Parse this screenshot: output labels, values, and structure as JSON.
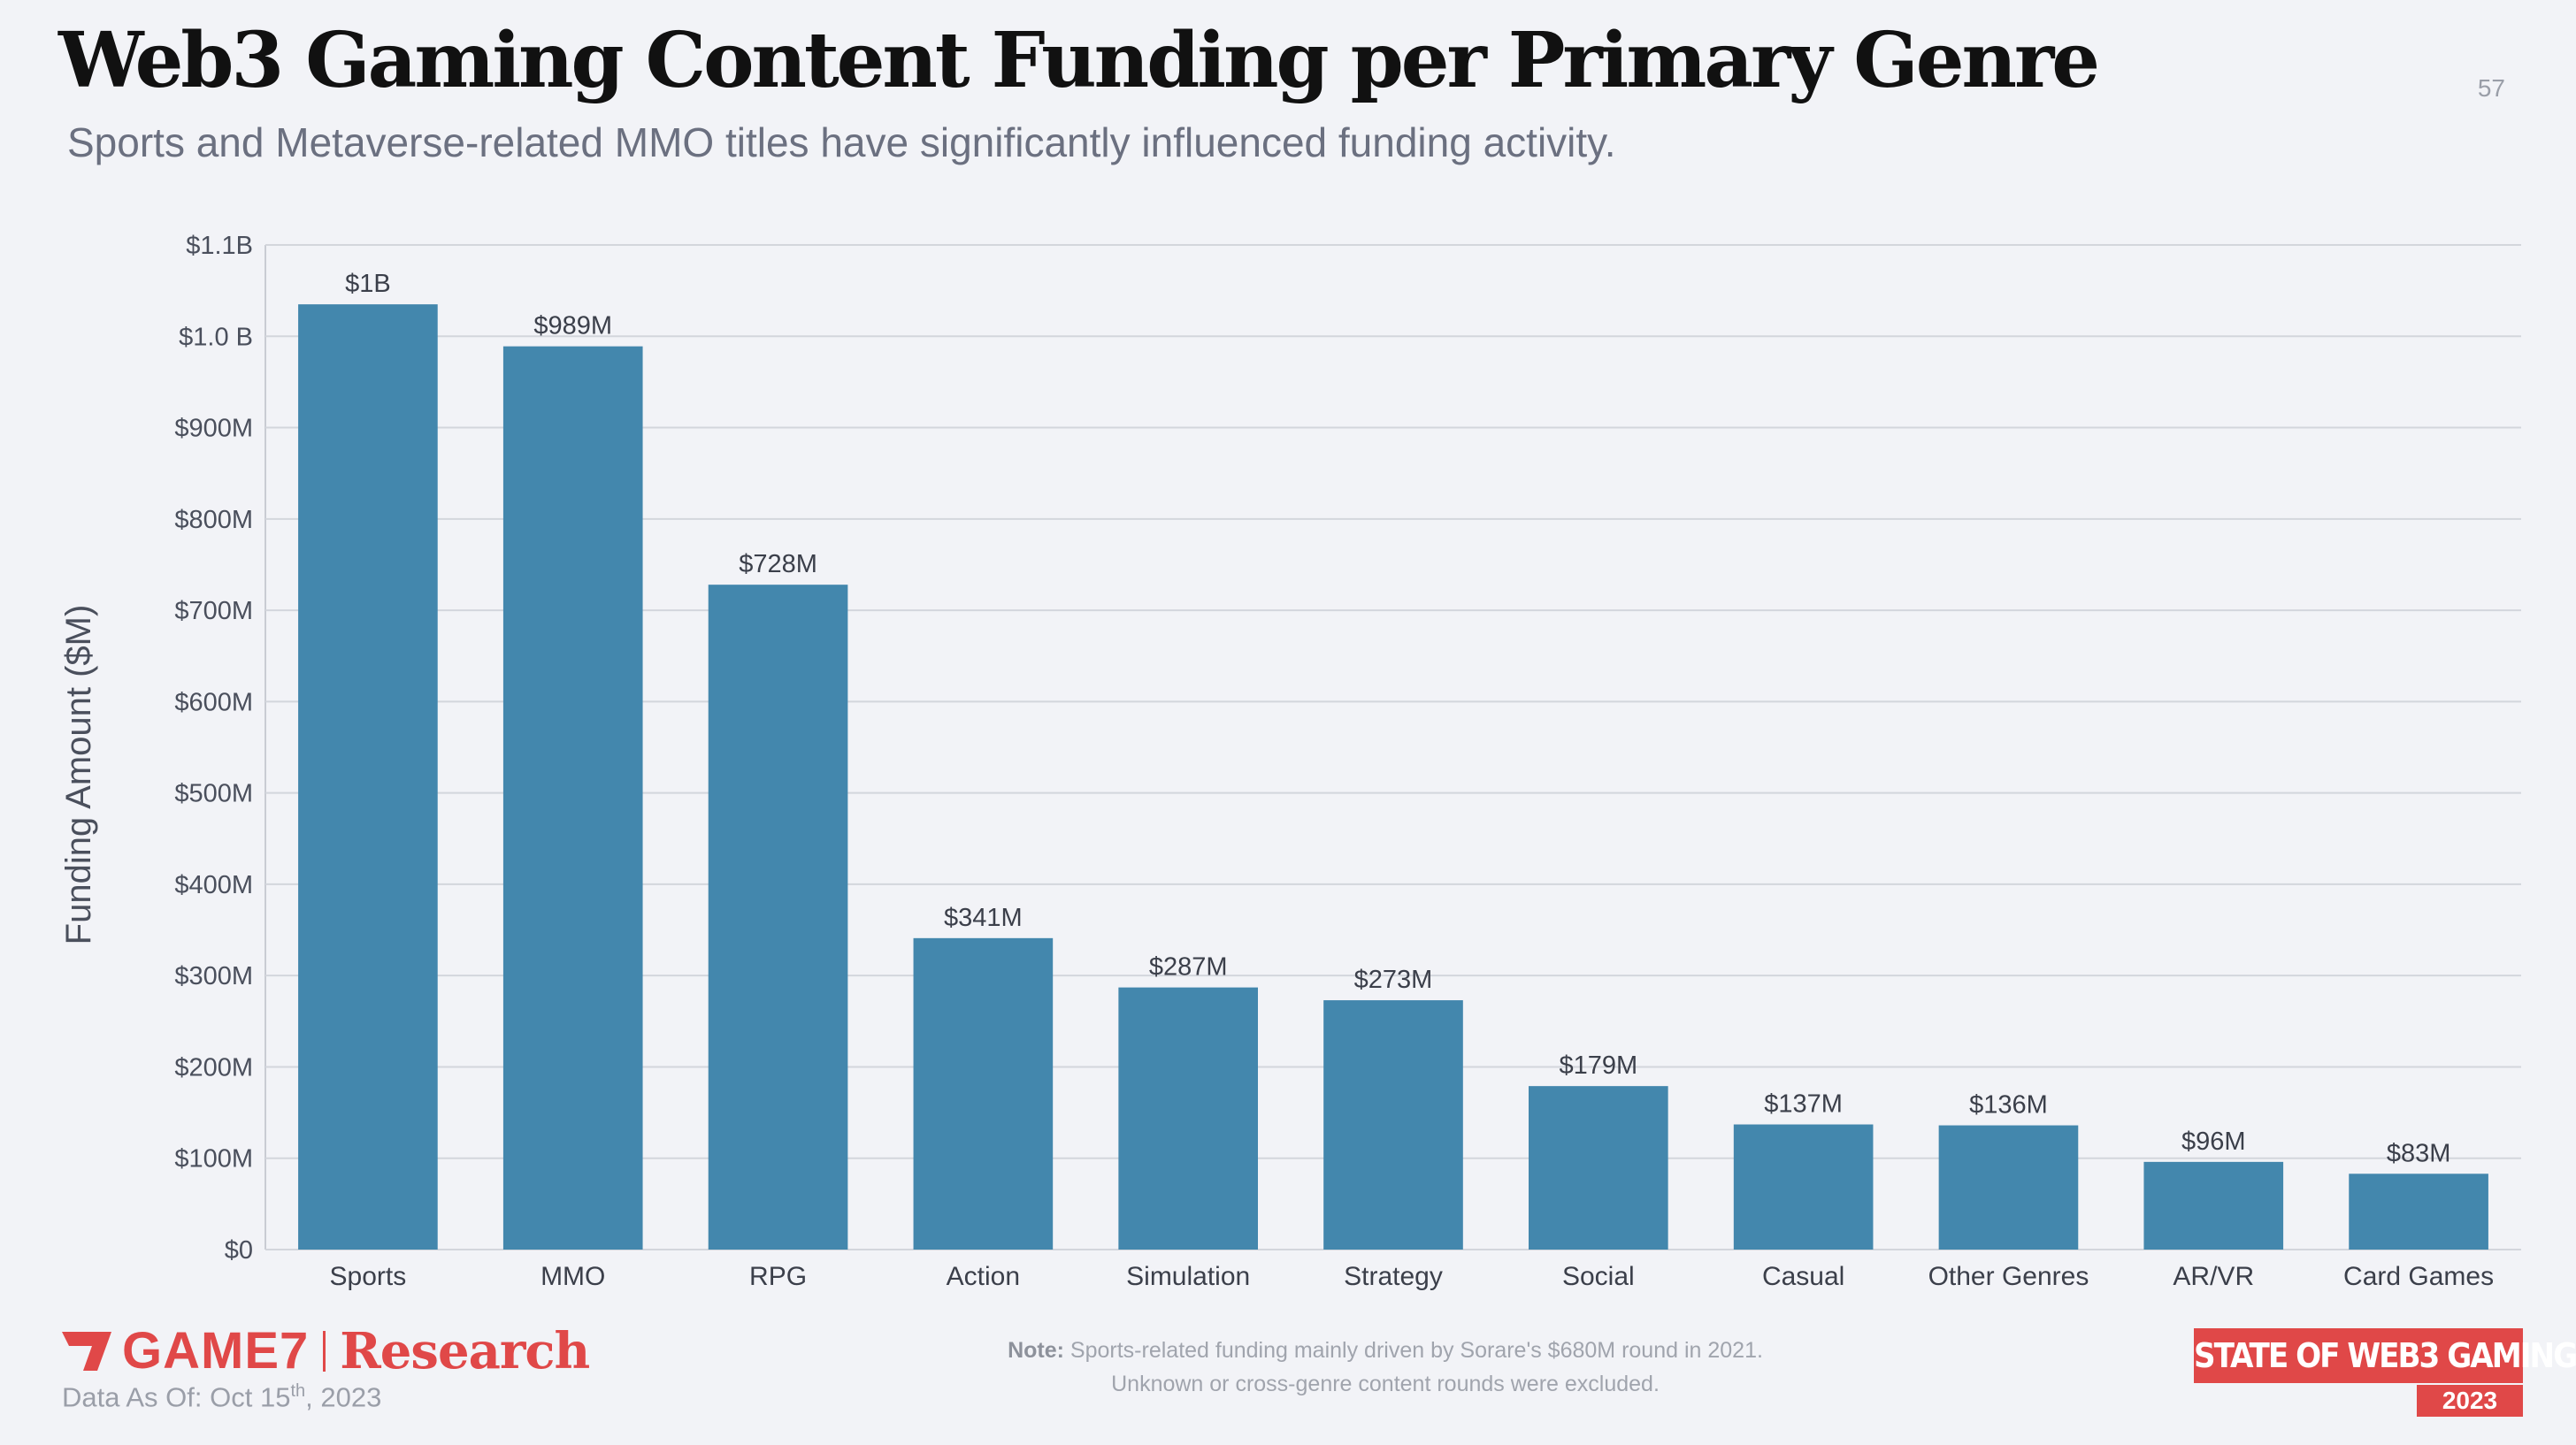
{
  "header": {
    "title": "Web3 Gaming Content Funding per Primary Genre",
    "subtitle": "Sports and Metaverse-related MMO titles have significantly influenced funding activity.",
    "page_number": "57"
  },
  "chart_data": {
    "type": "bar",
    "ylabel": "Funding Amount ($M)",
    "xlabel": "",
    "ylim": [
      0,
      1100
    ],
    "yticks": [
      0,
      100,
      200,
      300,
      400,
      500,
      600,
      700,
      800,
      900,
      1000,
      1100
    ],
    "ytick_labels": [
      "$0",
      "$100M",
      "$200M",
      "$300M",
      "$400M",
      "$500M",
      "$600M",
      "$700M",
      "$800M",
      "$900M",
      "$1.0 B",
      "$1.1B"
    ],
    "grid": true,
    "bar_color": "#4387ad",
    "categories": [
      "Sports",
      "MMO",
      "RPG",
      "Action",
      "Simulation",
      "Strategy",
      "Social",
      "Casual",
      "Other Genres",
      "AR/VR",
      "Card Games"
    ],
    "values": [
      1035,
      989,
      728,
      341,
      287,
      273,
      179,
      137,
      136,
      96,
      83
    ],
    "data_labels": [
      "$1B",
      "$989M",
      "$728M",
      "$341M",
      "$287M",
      "$273M",
      "$179M",
      "$137M",
      "$136M",
      "$96M",
      "$83M"
    ]
  },
  "footer": {
    "brand_name": "GAME7",
    "brand_research": "Research",
    "data_as_of_prefix": "Data As Of: Oct 15",
    "data_as_of_sup": "th",
    "data_as_of_suffix": ", 2023",
    "note_label": "Note:",
    "note_line1": "Sports-related funding mainly driven by Sorare's $680M round in 2021.",
    "note_line2": "Unknown or cross-genre content rounds were excluded.",
    "badge_text": "STATE OF WEB3 GAMING",
    "badge_year": "2023",
    "brand_color": "#e04848"
  }
}
